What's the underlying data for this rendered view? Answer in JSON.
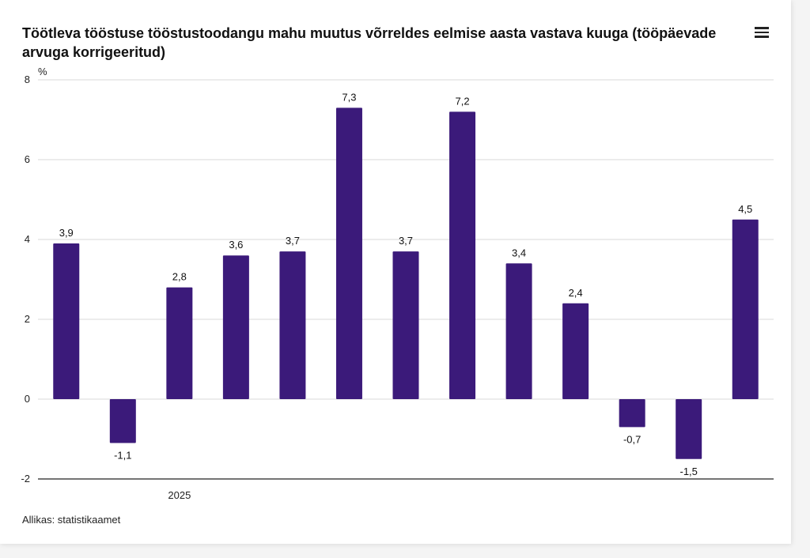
{
  "title": "Töötleva tööstuse tööstustoodangu mahu muutus võrreldes eelmise aasta vastava kuuga (tööpäevade arvuga korrigeeritud)",
  "source": "Allikas: statistikaamet",
  "menu_icon": "hamburger-menu-icon",
  "chart_data": {
    "type": "bar",
    "title": "Töötleva tööstuse tööstustoodangu mahu muutus võrreldes eelmise aasta vastava kuuga (tööpäevade arvuga korrigeeritud)",
    "ylabel": "%",
    "xlabel": "",
    "ylim": [
      -2,
      8
    ],
    "yticks": [
      -2,
      0,
      2,
      4,
      6,
      8
    ],
    "x_group_label": "2025",
    "x_group_label_index": 2,
    "values": [
      3.9,
      -1.1,
      2.8,
      3.6,
      3.7,
      7.3,
      3.7,
      7.2,
      3.4,
      2.4,
      -0.7,
      -1.5,
      4.5
    ],
    "value_labels": [
      "3,9",
      "-1,1",
      "2,8",
      "3,6",
      "3,7",
      "7,3",
      "3,7",
      "7,2",
      "3,4",
      "2,4",
      "-0,7",
      "-1,5",
      "4,5"
    ],
    "bar_color": "#3b1a7a",
    "grid": true
  }
}
